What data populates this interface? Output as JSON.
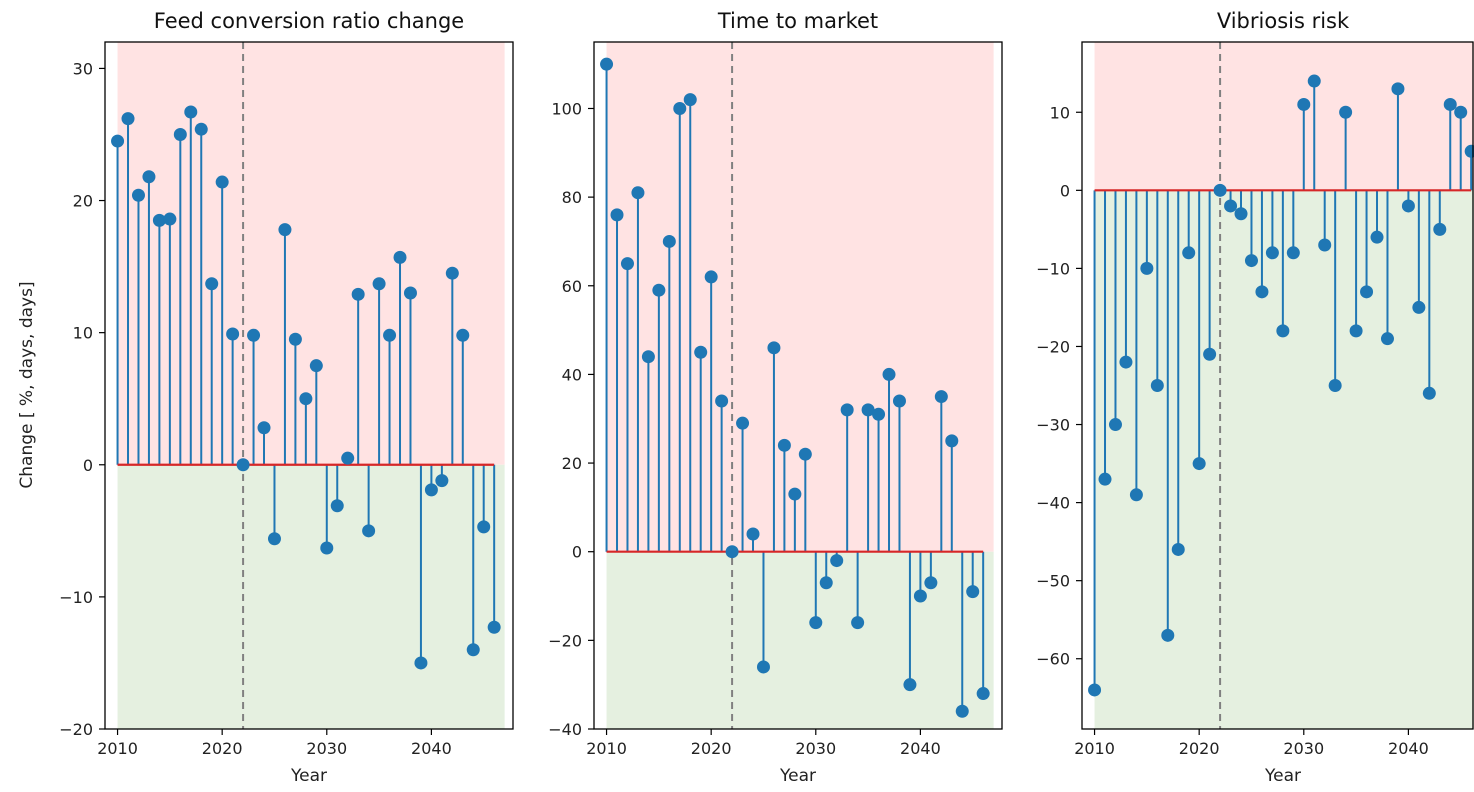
{
  "ylabel": "Change [ %, days, days]",
  "colors": {
    "stem": "#1f77b4",
    "baseline": "#d62728",
    "positive_region": "#ffe3e3",
    "negative_region": "#e5f0e0",
    "divider": "#808080"
  },
  "chart_data": [
    {
      "type": "stem",
      "title": "Feed conversion ratio change",
      "xlabel": "Year",
      "xlim": [
        2008.8,
        2047.8
      ],
      "ylim": [
        -20,
        32
      ],
      "xticks": [
        2010,
        2020,
        2030,
        2040
      ],
      "yticks": [
        -20,
        -10,
        0,
        10,
        20,
        30
      ],
      "divider_x": 2022,
      "shade_x": [
        2010,
        2047
      ],
      "x": [
        2010,
        2011,
        2012,
        2013,
        2014,
        2015,
        2016,
        2017,
        2018,
        2019,
        2020,
        2021,
        2022,
        2023,
        2024,
        2025,
        2026,
        2027,
        2028,
        2029,
        2030,
        2031,
        2032,
        2033,
        2034,
        2035,
        2036,
        2037,
        2038,
        2039,
        2040,
        2041,
        2042,
        2043,
        2044,
        2045,
        2046
      ],
      "values": [
        24.5,
        26.2,
        20.4,
        21.8,
        18.5,
        18.6,
        25,
        26.7,
        25.4,
        13.7,
        21.4,
        9.9,
        0,
        9.8,
        2.8,
        -5.6,
        17.8,
        9.5,
        5,
        7.5,
        -6.3,
        -3.1,
        0.5,
        12.9,
        -5,
        13.7,
        9.8,
        15.7,
        13,
        -15,
        -1.9,
        -1.2,
        14.5,
        9.8,
        -14,
        -4.7,
        -12.3
      ]
    },
    {
      "type": "stem",
      "title": "Time to market",
      "xlabel": "Year",
      "xlim": [
        2008.8,
        2047.8
      ],
      "ylim": [
        -40,
        115
      ],
      "xticks": [
        2010,
        2020,
        2030,
        2040
      ],
      "yticks": [
        -40,
        -20,
        0,
        20,
        40,
        60,
        80,
        100
      ],
      "divider_x": 2022,
      "shade_x": [
        2010,
        2047
      ],
      "x": [
        2010,
        2011,
        2012,
        2013,
        2014,
        2015,
        2016,
        2017,
        2018,
        2019,
        2020,
        2021,
        2022,
        2023,
        2024,
        2025,
        2026,
        2027,
        2028,
        2029,
        2030,
        2031,
        2032,
        2033,
        2034,
        2035,
        2036,
        2037,
        2038,
        2039,
        2040,
        2041,
        2042,
        2043,
        2044,
        2045,
        2046
      ],
      "values": [
        110,
        76,
        65,
        81,
        44,
        59,
        70,
        100,
        102,
        45,
        62,
        34,
        0,
        29,
        4,
        -26,
        46,
        24,
        13,
        22,
        -16,
        -7,
        -2,
        32,
        -16,
        32,
        31,
        40,
        34,
        -30,
        -10,
        -7,
        35,
        25,
        -36,
        -9,
        -32
      ]
    },
    {
      "type": "stem",
      "title": "Vibriosis risk",
      "xlabel": "Year",
      "xlim": [
        2008.8,
        2047.8
      ],
      "ylim": [
        -69,
        19
      ],
      "xticks": [
        2010,
        2020,
        2030,
        2040
      ],
      "yticks": [
        -60,
        -50,
        -40,
        -30,
        -20,
        -10,
        0,
        10
      ],
      "divider_x": 2022,
      "shade_x": [
        2010,
        2047
      ],
      "x": [
        2010,
        2011,
        2012,
        2013,
        2014,
        2015,
        2016,
        2017,
        2018,
        2019,
        2020,
        2021,
        2022,
        2023,
        2024,
        2025,
        2026,
        2027,
        2028,
        2029,
        2030,
        2031,
        2032,
        2033,
        2034,
        2035,
        2036,
        2037,
        2038,
        2039,
        2040,
        2041,
        2042,
        2043,
        2044,
        2045,
        2046
      ],
      "values": [
        -64,
        -37,
        -30,
        -22,
        -39,
        -10,
        -25,
        -57,
        -46,
        -8,
        -35,
        -21,
        0,
        -2,
        -3,
        -9,
        -13,
        -8,
        -18,
        -8,
        11,
        14,
        -7,
        -25,
        10,
        -18,
        -13,
        -6,
        -19,
        13,
        -2,
        -15,
        -26,
        -5,
        11,
        10,
        5
      ]
    }
  ]
}
